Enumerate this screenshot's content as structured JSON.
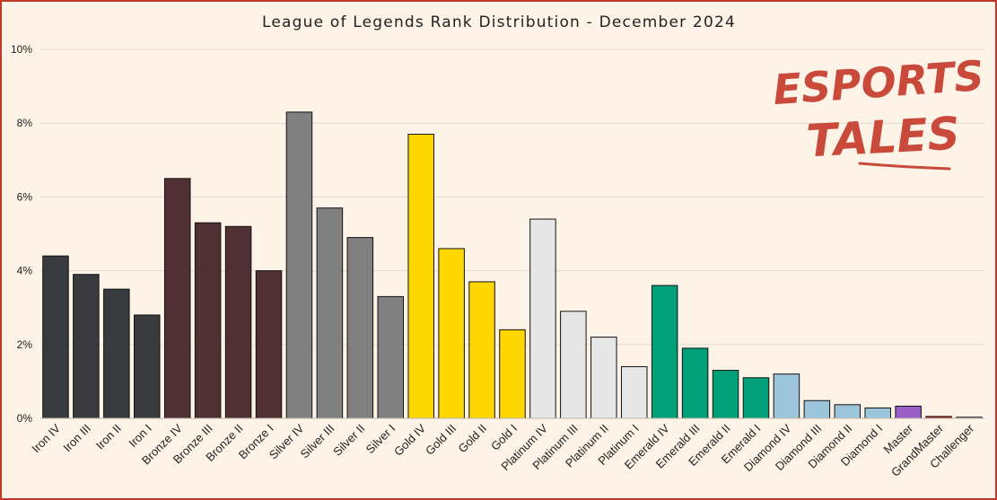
{
  "chart_data": {
    "type": "bar",
    "title": "League of Legends Rank Distribution  - December 2024",
    "xlabel": "",
    "ylabel": "",
    "ylim": [
      0,
      10
    ],
    "yticks": [
      0,
      2,
      4,
      6,
      8,
      10
    ],
    "ytick_suffix": "%",
    "grid": true,
    "categories": [
      "Iron IV",
      "Iron III",
      "Iron II",
      "Iron I",
      "Bronze IV",
      "Bronze III",
      "Bronze II",
      "Bronze I",
      "Silver IV",
      "Silver III",
      "Silver II",
      "Silver I",
      "Gold IV",
      "Gold III",
      "Gold II",
      "Gold I",
      "Platinum IV",
      "Platinum III",
      "Platinum II",
      "Platinum I",
      "Emerald IV",
      "Emerald III",
      "Emerald II",
      "Emerald I",
      "Diamond IV",
      "Diamond III",
      "Diamond II",
      "Diamond I",
      "Master",
      "GrandMaster",
      "Challenger"
    ],
    "values": [
      4.4,
      3.9,
      3.5,
      2.8,
      6.5,
      5.3,
      5.2,
      4.0,
      8.3,
      5.7,
      4.9,
      3.3,
      7.7,
      4.6,
      3.7,
      2.4,
      5.4,
      2.9,
      2.2,
      1.4,
      3.6,
      1.9,
      1.3,
      1.1,
      1.2,
      0.48,
      0.37,
      0.28,
      0.33,
      0.05,
      0.03
    ],
    "colors": [
      "#3a3b3e",
      "#3a3b3e",
      "#3a3b3e",
      "#3a3b3e",
      "#513034",
      "#513034",
      "#513034",
      "#513034",
      "#808080",
      "#808080",
      "#808080",
      "#808080",
      "#ffd700",
      "#ffd700",
      "#ffd700",
      "#ffd700",
      "#e6e6e6",
      "#e6e6e6",
      "#e6e6e6",
      "#e6e6e6",
      "#00a079",
      "#00a079",
      "#00a079",
      "#00a079",
      "#9cc5dc",
      "#9cc5dc",
      "#9cc5dc",
      "#9cc5dc",
      "#9b5fc8",
      "#a52a2a",
      "#b8d0e6"
    ]
  },
  "logo": {
    "line1": "ESPORTS",
    "line2": "TALES",
    "color": "#c94a3a"
  }
}
